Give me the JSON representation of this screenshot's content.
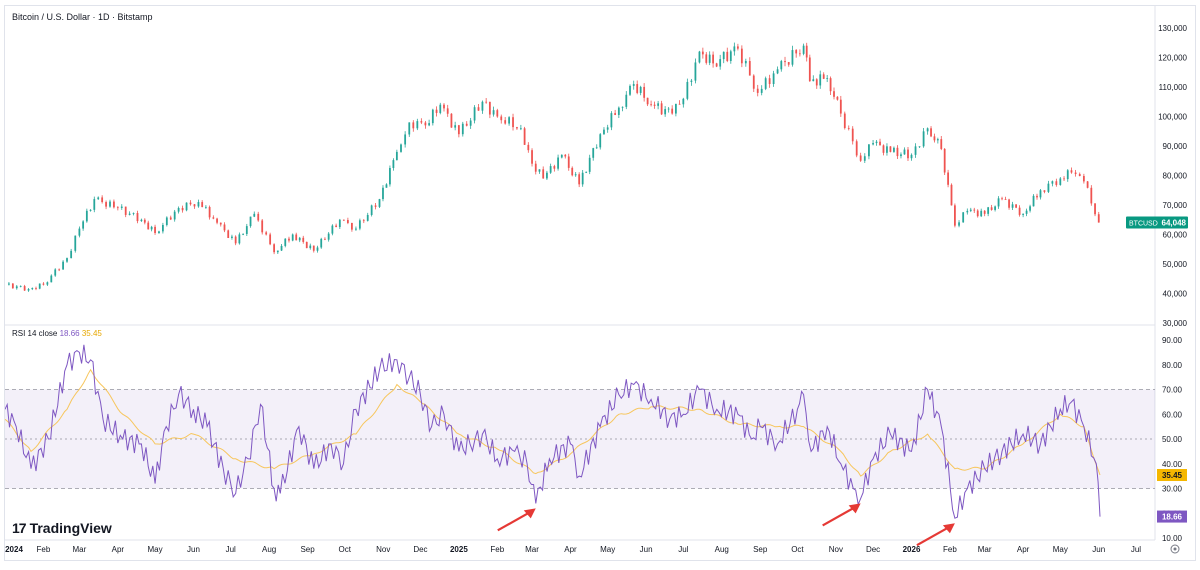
{
  "chart_data": [
    {
      "type": "candlestick",
      "title": "Bitcoin / U.S. Dollar · 1D · Bitstamp",
      "price_label": {
        "ticker": "BTCUSD",
        "value": "64,048"
      },
      "y_ticks": [
        "130,000",
        "120,000",
        "110,000",
        "100,000",
        "90,000",
        "80,000",
        "70,000",
        "60,000",
        "50,000",
        "40,000",
        "30,000"
      ],
      "ylim": [
        30000,
        130000
      ],
      "colors": {
        "up": "#26a69a",
        "down": "#ef5350",
        "label_bg": "#089981"
      },
      "x_labels": [
        "2024",
        "Feb",
        "Mar",
        "Apr",
        "May",
        "Jun",
        "Jul",
        "Aug",
        "Sep",
        "Oct",
        "Nov",
        "Dec",
        "2025",
        "Feb",
        "Mar",
        "Apr",
        "May",
        "Jun",
        "Jul",
        "Aug",
        "Sep",
        "Oct",
        "Nov",
        "Dec",
        "2026",
        "Feb",
        "Mar",
        "Apr",
        "May",
        "Jun",
        "Jul"
      ],
      "x_anchor": "2024-01-01",
      "series": [
        {
          "name": "BTCUSD",
          "dates": [
            "2024-01-01",
            "2024-01-20",
            "2024-02-01",
            "2024-02-20",
            "2024-03-01",
            "2024-03-13",
            "2024-04-01",
            "2024-04-20",
            "2024-05-01",
            "2024-05-20",
            "2024-06-05",
            "2024-06-20",
            "2024-07-05",
            "2024-07-20",
            "2024-08-05",
            "2024-08-20",
            "2024-09-06",
            "2024-09-27",
            "2024-10-10",
            "2024-10-29",
            "2024-11-12",
            "2024-11-22",
            "2024-12-05",
            "2024-12-17",
            "2025-01-01",
            "2025-01-20",
            "2025-02-01",
            "2025-02-20",
            "2025-03-01",
            "2025-03-10",
            "2025-03-25",
            "2025-04-08",
            "2025-04-25",
            "2025-05-10",
            "2025-05-22",
            "2025-06-05",
            "2025-06-22",
            "2025-07-01",
            "2025-07-14",
            "2025-07-25",
            "2025-08-14",
            "2025-08-30",
            "2025-09-15",
            "2025-10-06",
            "2025-10-11",
            "2025-10-25",
            "2025-11-05",
            "2025-11-21",
            "2025-12-01",
            "2025-12-15",
            "2026-01-01",
            "2026-01-14",
            "2026-01-25",
            "2026-02-05",
            "2026-02-15",
            "2026-03-01",
            "2026-03-15",
            "2026-04-01",
            "2026-04-15",
            "2026-05-01",
            "2026-05-10",
            "2026-05-20",
            "2026-06-01"
          ],
          "close": [
            43000,
            41500,
            43000,
            52000,
            62000,
            72000,
            69000,
            65000,
            60500,
            69000,
            71000,
            64000,
            57000,
            67000,
            54000,
            60000,
            54500,
            65000,
            62000,
            72000,
            88000,
            98000,
            97000,
            104000,
            94000,
            105000,
            100000,
            96000,
            84000,
            79000,
            87000,
            77000,
            94000,
            103000,
            111000,
            104000,
            101000,
            106000,
            122000,
            118000,
            123000,
            108000,
            116000,
            124000,
            112000,
            113000,
            101000,
            85000,
            91000,
            88000,
            87000,
            96000,
            89000,
            63000,
            68000,
            67000,
            72000,
            67000,
            75000,
            79000,
            81000,
            78000,
            64048
          ]
        }
      ]
    },
    {
      "type": "line",
      "title": "RSI 14 close",
      "values": {
        "rsi": "18.66",
        "ma": "35.45"
      },
      "y_ticks": [
        "90.00",
        "80.00",
        "70.00",
        "60.00",
        "50.00",
        "40.00",
        "30.00",
        "20.00",
        "10.00"
      ],
      "ylim": [
        10,
        90
      ],
      "bands": [
        30,
        50,
        70
      ],
      "colors": {
        "rsi": "#7e57c2",
        "ma": "#f7c65d",
        "band": "#7e57c2",
        "ma_label": "#f5b700"
      },
      "series": [
        {
          "name": "RSI",
          "dates": [
            "2024-01-01",
            "2024-01-10",
            "2024-01-22",
            "2024-02-05",
            "2024-02-20",
            "2024-03-01",
            "2024-03-10",
            "2024-03-20",
            "2024-04-05",
            "2024-04-20",
            "2024-05-01",
            "2024-05-10",
            "2024-05-20",
            "2024-06-01",
            "2024-06-12",
            "2024-06-25",
            "2024-07-05",
            "2024-07-15",
            "2024-07-25",
            "2024-08-05",
            "2024-08-10",
            "2024-08-25",
            "2024-09-06",
            "2024-09-20",
            "2024-09-30",
            "2024-10-10",
            "2024-10-29",
            "2024-11-12",
            "2024-11-22",
            "2024-12-01",
            "2024-12-10",
            "2024-12-20",
            "2025-01-01",
            "2025-01-10",
            "2025-01-20",
            "2025-02-01",
            "2025-02-15",
            "2025-02-25",
            "2025-03-04",
            "2025-03-15",
            "2025-04-01",
            "2025-04-08",
            "2025-04-25",
            "2025-05-10",
            "2025-05-22",
            "2025-06-05",
            "2025-06-20",
            "2025-07-01",
            "2025-07-14",
            "2025-07-28",
            "2025-08-14",
            "2025-08-25",
            "2025-09-01",
            "2025-09-15",
            "2025-10-01",
            "2025-10-06",
            "2025-10-12",
            "2025-10-25",
            "2025-11-05",
            "2025-11-15",
            "2025-11-21",
            "2025-12-01",
            "2025-12-15",
            "2026-01-01",
            "2026-01-14",
            "2026-01-25",
            "2026-02-05",
            "2026-02-15",
            "2026-03-01",
            "2026-03-15",
            "2026-04-01",
            "2026-04-15",
            "2026-05-01",
            "2026-05-10",
            "2026-05-20",
            "2026-05-30",
            "2026-06-02"
          ],
          "values": [
            62,
            55,
            38,
            50,
            80,
            85,
            82,
            58,
            50,
            48,
            32,
            55,
            68,
            62,
            55,
            38,
            28,
            42,
            64,
            30,
            28,
            55,
            38,
            48,
            40,
            62,
            78,
            82,
            75,
            68,
            55,
            60,
            45,
            48,
            52,
            42,
            45,
            40,
            24,
            42,
            48,
            35,
            55,
            68,
            72,
            66,
            58,
            60,
            70,
            62,
            60,
            50,
            55,
            48,
            62,
            68,
            45,
            55,
            40,
            30,
            26,
            42,
            52,
            45,
            70,
            55,
            18,
            30,
            38,
            45,
            52,
            48,
            62,
            65,
            55,
            40,
            18.66
          ]
        },
        {
          "name": "RSI-based MA",
          "dates": [
            "2024-01-01",
            "2024-01-22",
            "2024-02-20",
            "2024-03-10",
            "2024-04-05",
            "2024-05-01",
            "2024-06-01",
            "2024-07-05",
            "2024-08-05",
            "2024-09-06",
            "2024-10-10",
            "2024-11-12",
            "2024-12-01",
            "2025-01-01",
            "2025-02-01",
            "2025-03-04",
            "2025-04-01",
            "2025-05-10",
            "2025-06-05",
            "2025-07-14",
            "2025-08-14",
            "2025-09-15",
            "2025-10-06",
            "2025-11-05",
            "2025-11-21",
            "2025-12-15",
            "2026-01-14",
            "2026-02-05",
            "2026-03-01",
            "2026-04-01",
            "2026-05-01",
            "2026-05-20",
            "2026-06-02"
          ],
          "values": [
            58,
            45,
            62,
            78,
            60,
            48,
            52,
            42,
            38,
            44,
            52,
            72,
            65,
            52,
            46,
            36,
            44,
            60,
            63,
            62,
            56,
            55,
            55,
            45,
            35,
            45,
            52,
            38,
            38,
            48,
            60,
            55,
            35.45
          ]
        }
      ]
    }
  ],
  "branding": {
    "logo_text": "TradingView",
    "logo_mark": "17"
  }
}
